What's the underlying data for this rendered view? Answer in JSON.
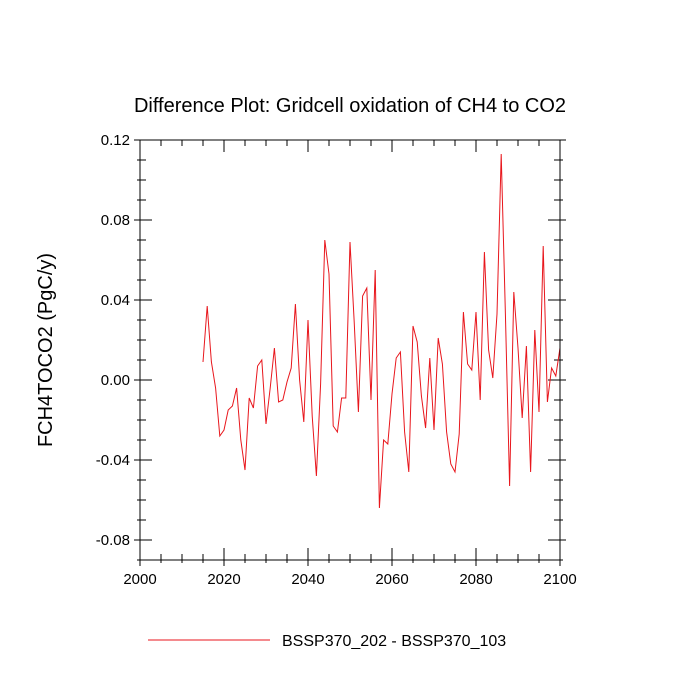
{
  "chart_data": {
    "type": "line",
    "title": "Difference Plot: Gridcell oxidation of CH4 to CO2",
    "xlabel": "",
    "ylabel": "FCH4TOCO2  (PgC/y)",
    "xlim": [
      2000,
      2100
    ],
    "ylim": [
      -0.09,
      0.12
    ],
    "x_ticks": [
      2000,
      2020,
      2040,
      2060,
      2080,
      2100
    ],
    "x_tick_labels": [
      "2000",
      "2020",
      "2040",
      "2060",
      "2080",
      "2100"
    ],
    "y_ticks": [
      -0.08,
      -0.04,
      0.0,
      0.04,
      0.08,
      0.12
    ],
    "y_tick_labels": [
      "-0.08",
      "-0.04",
      "0.00",
      "0.04",
      "0.08",
      "0.12"
    ],
    "legend_position": "bottom-center",
    "series_color": "#e8161c",
    "series": [
      {
        "name": "BSSP370_202 - BSSP370_103",
        "x": [
          2015,
          2016,
          2017,
          2018,
          2019,
          2020,
          2021,
          2022,
          2023,
          2024,
          2025,
          2026,
          2027,
          2028,
          2029,
          2030,
          2031,
          2032,
          2033,
          2034,
          2035,
          2036,
          2037,
          2038,
          2039,
          2040,
          2041,
          2042,
          2043,
          2044,
          2045,
          2046,
          2047,
          2048,
          2049,
          2050,
          2051,
          2052,
          2053,
          2054,
          2055,
          2056,
          2057,
          2058,
          2059,
          2060,
          2061,
          2062,
          2063,
          2064,
          2065,
          2066,
          2067,
          2068,
          2069,
          2070,
          2071,
          2072,
          2073,
          2074,
          2075,
          2076,
          2077,
          2078,
          2079,
          2080,
          2081,
          2082,
          2083,
          2084,
          2085,
          2086,
          2087,
          2088,
          2089,
          2090,
          2091,
          2092,
          2093,
          2094,
          2095,
          2096,
          2097,
          2098,
          2099,
          2100
        ],
        "values": [
          0.009,
          0.037,
          0.009,
          -0.004,
          -0.028,
          -0.025,
          -0.015,
          -0.013,
          -0.004,
          -0.03,
          -0.045,
          -0.009,
          -0.014,
          0.007,
          0.01,
          -0.022,
          -0.004,
          0.016,
          -0.011,
          -0.01,
          -0.001,
          0.006,
          0.038,
          0.0,
          -0.021,
          0.03,
          -0.018,
          -0.048,
          -0.002,
          0.07,
          0.053,
          -0.023,
          -0.026,
          -0.009,
          -0.009,
          0.069,
          0.029,
          -0.016,
          0.042,
          0.046,
          -0.01,
          0.055,
          -0.064,
          -0.03,
          -0.032,
          -0.007,
          0.011,
          0.014,
          -0.026,
          -0.046,
          0.027,
          0.019,
          -0.008,
          -0.024,
          0.011,
          -0.025,
          0.021,
          0.008,
          -0.026,
          -0.042,
          -0.046,
          -0.027,
          0.034,
          0.008,
          0.005,
          0.034,
          -0.01,
          0.064,
          0.015,
          0.001,
          0.033,
          0.113,
          0.033,
          -0.053,
          0.044,
          0.016,
          -0.019,
          0.017,
          -0.046,
          0.025,
          -0.016,
          0.067,
          -0.011,
          0.006,
          0.002,
          0.016
        ]
      }
    ]
  }
}
